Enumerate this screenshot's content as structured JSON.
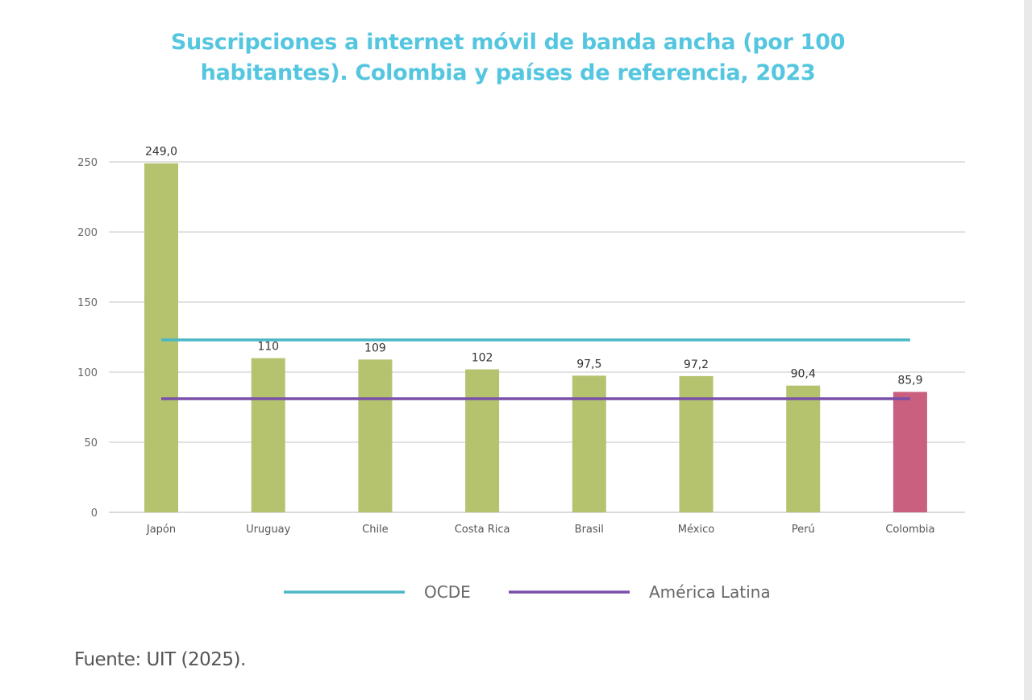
{
  "chart_data": {
    "type": "bar",
    "title": "Suscripciones a internet móvil de banda ancha (por 100 habitantes). Colombia y países de referencia, 2023",
    "categories": [
      "Japón",
      "Uruguay",
      "Chile",
      "Costa Rica",
      "Brasil",
      "México",
      "Perú",
      "Colombia"
    ],
    "values": [
      249.0,
      110,
      109,
      102,
      97.5,
      97.2,
      90.4,
      85.9
    ],
    "data_labels": [
      "249,0",
      "110",
      "109",
      "102",
      "97,5",
      "97,2",
      "90,4",
      "85,9"
    ],
    "bar_colors": [
      "#b5c36e",
      "#b5c36e",
      "#b5c36e",
      "#b5c36e",
      "#b5c36e",
      "#b5c36e",
      "#b5c36e",
      "#c9607f"
    ],
    "reference_lines": [
      {
        "name": "OCDE",
        "value": 123,
        "color": "#4ab7c6"
      },
      {
        "name": "América Latina",
        "value": 81,
        "color": "#7a4fa8"
      }
    ],
    "yticks": [
      0,
      50,
      100,
      150,
      200,
      250
    ],
    "ylim": [
      0,
      250
    ],
    "grid": true,
    "legend_position": "bottom",
    "xlabel": "",
    "ylabel": ""
  },
  "source": "Fuente: UIT (2025)."
}
